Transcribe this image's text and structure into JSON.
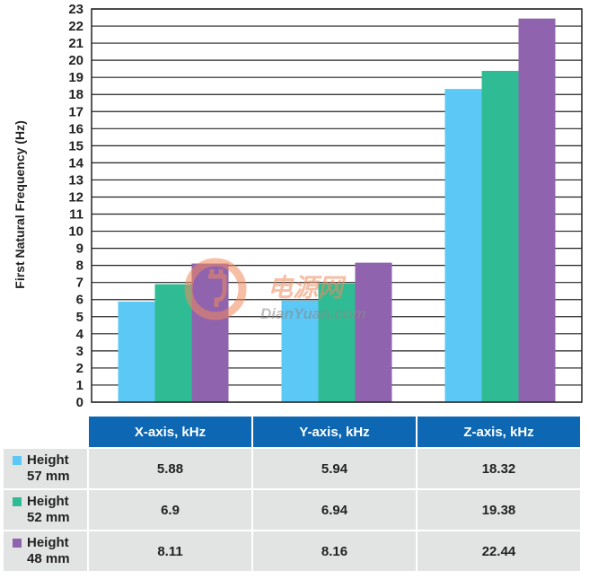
{
  "chart_data": {
    "type": "bar",
    "ylabel": "First Natural Frequency (Hz)",
    "ylim": [
      0,
      23
    ],
    "yticks": [
      0,
      1,
      2,
      3,
      4,
      5,
      6,
      7,
      8,
      9,
      10,
      11,
      12,
      13,
      14,
      15,
      16,
      17,
      18,
      19,
      20,
      21,
      22,
      23
    ],
    "grid": true,
    "categories": [
      "X-axis, kHz",
      "Y-axis, kHz",
      "Z-axis, kHz"
    ],
    "series": [
      {
        "name": "Height\n57 mm",
        "color": "#5bc8f5",
        "values": [
          5.88,
          5.94,
          18.32
        ],
        "labels": [
          "5.88",
          "5.94",
          "18.32"
        ]
      },
      {
        "name": "Height\n52 mm",
        "color": "#2fbc94",
        "values": [
          6.9,
          6.94,
          19.38
        ],
        "labels": [
          "6.9",
          "6.94",
          "19.38"
        ]
      },
      {
        "name": "Height\n48 mm",
        "color": "#8f63ae",
        "values": [
          8.11,
          8.16,
          22.44
        ],
        "labels": [
          "8.11",
          "8.16",
          "22.44"
        ]
      }
    ]
  },
  "colors": {
    "header_bg": "#0e67b2",
    "cell_bg": "#e2e3e3",
    "grid": "#222222"
  },
  "watermark": {
    "brand": "电源网",
    "site": "DianYuan.com",
    "color": "#f08a5d"
  }
}
